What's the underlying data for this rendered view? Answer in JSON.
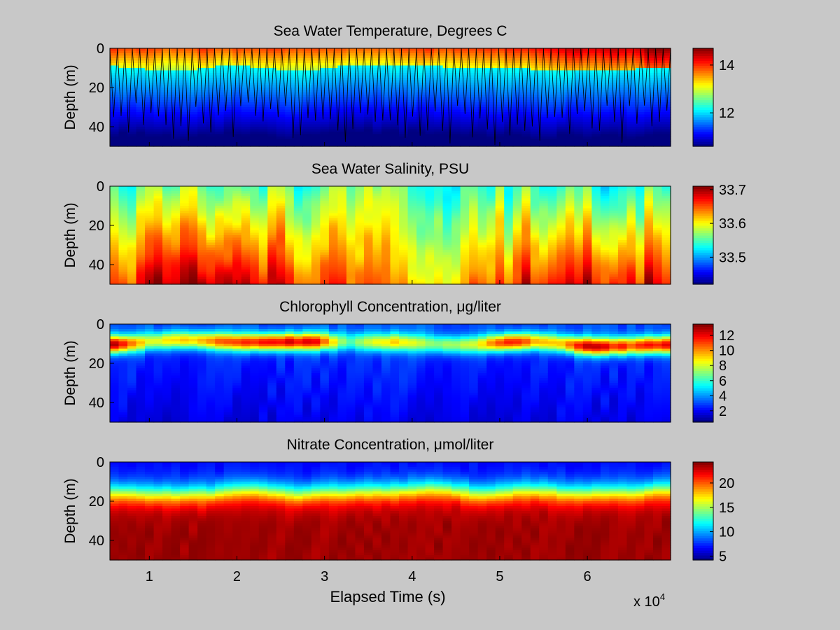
{
  "figure": {
    "xlabel": "Elapsed Time (s)",
    "x_multiplier": "x 10",
    "x_multiplier_exp": "4",
    "ylabel": "Depth (m)"
  },
  "chart_data": [
    {
      "type": "heatmap",
      "title": "Sea Water Temperature, Degrees C",
      "ylabel": "Depth (m)",
      "xlim": [
        5500,
        69500
      ],
      "ylim": [
        0,
        50
      ],
      "y_reversed": true,
      "colormap": "jet",
      "clim": [
        10.6,
        14.7
      ],
      "colorbar_ticks": [
        "12",
        "14"
      ],
      "colorbar_tick_values": [
        12,
        14
      ],
      "x_ticks": [
        10000,
        20000,
        30000,
        40000,
        50000,
        60000
      ],
      "y_ticks": [
        "0",
        "20",
        "40"
      ],
      "y_tick_values": [
        0,
        20,
        40
      ],
      "overlay": "profile track (black yo-yo lines)"
    },
    {
      "type": "heatmap",
      "title": "Sea Water Salinity, PSU",
      "ylabel": "Depth (m)",
      "xlim": [
        5500,
        69500
      ],
      "ylim": [
        0,
        50
      ],
      "y_reversed": true,
      "colormap": "jet",
      "clim": [
        33.42,
        33.71
      ],
      "colorbar_ticks": [
        "33.5",
        "33.6",
        "33.7"
      ],
      "colorbar_tick_values": [
        33.5,
        33.6,
        33.7
      ],
      "x_ticks": [
        10000,
        20000,
        30000,
        40000,
        50000,
        60000
      ],
      "y_ticks": [
        "0",
        "20",
        "40"
      ],
      "y_tick_values": [
        0,
        20,
        40
      ]
    },
    {
      "type": "heatmap",
      "title": "Chlorophyll Concentration, μg/liter",
      "ylabel": "Depth (m)",
      "xlim": [
        5500,
        69500
      ],
      "ylim": [
        0,
        50
      ],
      "y_reversed": true,
      "colormap": "jet",
      "clim": [
        0.5,
        13.5
      ],
      "colorbar_ticks": [
        "2",
        "4",
        "6",
        "8",
        "10",
        "12"
      ],
      "colorbar_tick_values": [
        2,
        4,
        6,
        8,
        10,
        12
      ],
      "x_ticks": [
        10000,
        20000,
        30000,
        40000,
        50000,
        60000
      ],
      "y_ticks": [
        "0",
        "20",
        "40"
      ],
      "y_tick_values": [
        0,
        20,
        40
      ]
    },
    {
      "type": "heatmap",
      "title": "Nitrate Concentration, μmol/liter",
      "ylabel": "Depth (m)",
      "xlim": [
        5500,
        69500
      ],
      "ylim": [
        0,
        50
      ],
      "y_reversed": true,
      "colormap": "jet",
      "clim": [
        4.2,
        24.3
      ],
      "colorbar_ticks": [
        "5",
        "10",
        "15",
        "20"
      ],
      "colorbar_tick_values": [
        5,
        10,
        15,
        20
      ],
      "x_ticks": [
        10000,
        20000,
        30000,
        40000,
        50000,
        60000
      ],
      "x_tick_labels": [
        "1",
        "2",
        "3",
        "4",
        "5",
        "6"
      ],
      "y_ticks": [
        "0",
        "20",
        "40"
      ],
      "y_tick_values": [
        0,
        20,
        40
      ]
    }
  ]
}
